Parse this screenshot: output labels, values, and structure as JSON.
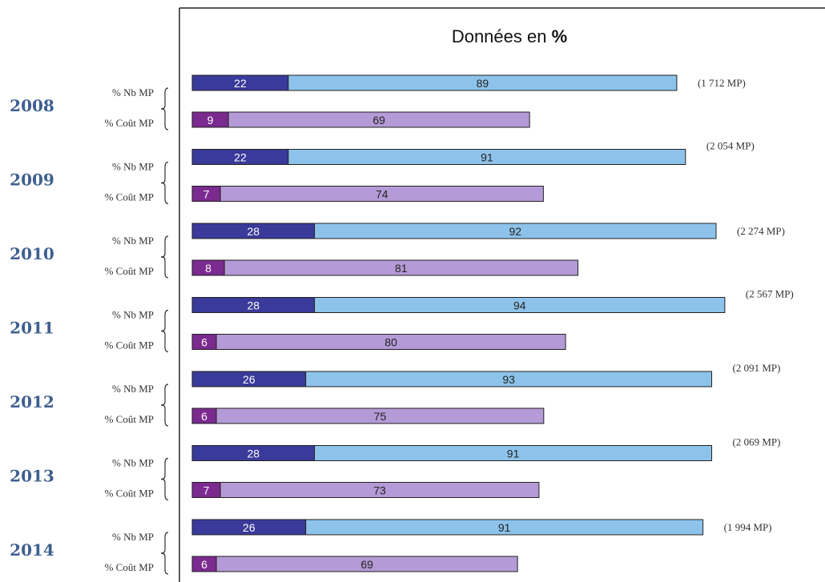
{
  "chart_data": {
    "type": "bar",
    "title": "Données en",
    "title_symbol": "%",
    "row_labels": [
      "% Nb MP",
      "% Coût MP"
    ],
    "years": [
      {
        "year": "2008",
        "nb_part1": 22,
        "nb_part2": 89,
        "cout_part1": 9,
        "cout_part2": 69,
        "total": "(1 712 MP)"
      },
      {
        "year": "2009",
        "nb_part1": 22,
        "nb_part2": 91,
        "cout_part1": 7,
        "cout_part2": 74,
        "total": "(2 054 MP)"
      },
      {
        "year": "2010",
        "nb_part1": 28,
        "nb_part2": 92,
        "cout_part1": 8,
        "cout_part2": 81,
        "total": "(2 274 MP)"
      },
      {
        "year": "2011",
        "nb_part1": 28,
        "nb_part2": 94,
        "cout_part1": 6,
        "cout_part2": 80,
        "total": "(2 567 MP)"
      },
      {
        "year": "2012",
        "nb_part1": 26,
        "nb_part2": 93,
        "cout_part1": 6,
        "cout_part2": 75,
        "total": "(2 091 MP)"
      },
      {
        "year": "2013",
        "nb_part1": 28,
        "nb_part2": 91,
        "cout_part1": 7,
        "cout_part2": 73,
        "total": "(2 069 MP)"
      },
      {
        "year": "2014",
        "nb_part1": 26,
        "nb_part2": 91,
        "cout_part1": 6,
        "cout_part2": 69,
        "total": "(1 994 MP)"
      }
    ],
    "colors": {
      "nb_part1": "#3a3a9a",
      "nb_part2": "#8dc3ea",
      "cout_part1": "#7b2a8f",
      "cout_part2": "#b49ad6",
      "year": "#3e5f8f"
    }
  }
}
